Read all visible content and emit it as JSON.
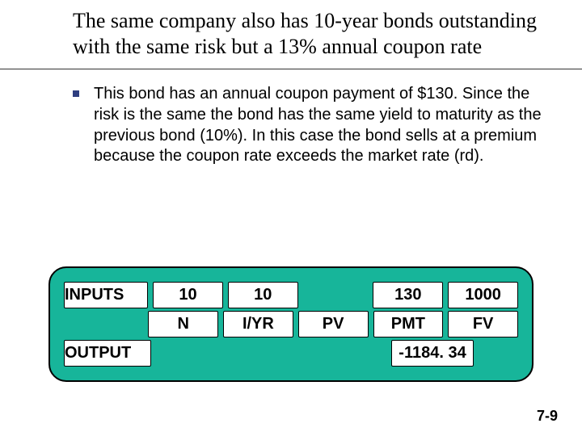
{
  "title": "The same company also has 10-year bonds outstanding with the same risk but a 13% annual coupon rate",
  "body": "This bond has an annual coupon payment of $130. Since the risk is the same the bond has the same yield to maturity as the previous bond (10%).  In this case the bond sells at a premium because the coupon rate exceeds the market rate (rd).",
  "calc": {
    "inputsLabel": "INPUTS",
    "outputLabel": "OUTPUT",
    "columns": [
      "N",
      "I/YR",
      "PV",
      "PMT",
      "FV"
    ],
    "values": [
      "10",
      "10",
      "",
      "130",
      "1000"
    ],
    "outputValue": "-1184. 34",
    "panelBg": "#17b59a",
    "boxBg": "#ffffff"
  },
  "pageNumber": "7-9",
  "colors": {
    "bullet": "#2e3e80",
    "text": "#000000"
  }
}
